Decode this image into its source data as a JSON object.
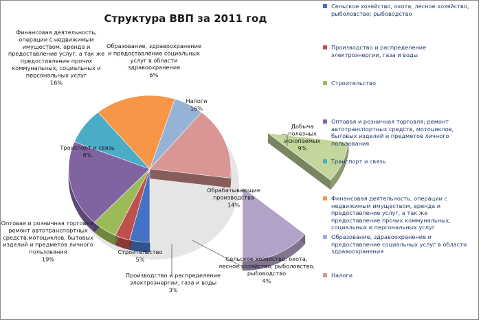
{
  "chart_data": {
    "type": "pie",
    "title": "Структура ВВП за 2011 год",
    "slices": [
      {
        "name": "Сельское хозяйство, охота, лесное хозяйство, рыболовство; рыбоводство",
        "label": "Сельское хозяйство, охота,\nлесное хозяйство, рыболовство,\nрыбоводство",
        "percent_label": "4%",
        "value": 4,
        "color": "#4472c4"
      },
      {
        "name": "Производство и распределение электроэнергии, газа и воды",
        "label": "Производство и распределение\nэлектроэнергии, газа и воды",
        "percent_label": "3%",
        "value": 3,
        "color": "#c0504d"
      },
      {
        "name": "Строительство",
        "label": "Строительство",
        "percent_label": "5%",
        "value": 5,
        "color": "#9bbb59"
      },
      {
        "name": "Оптовая и розничная торговля; ремонт автотранспортных средств, мотоциклов, бытовых изделий и предметов личного пользования",
        "label": "Оптовая и розничная торговля;\nремонт автотранспортных\nсредств,мотоциклов, бытовых\nизделий и предметов личного\nпользования",
        "percent_label": "19%",
        "value": 19,
        "color": "#8064a2"
      },
      {
        "name": "Транспорт и связь",
        "label": "Транспорт и связь",
        "percent_label": "8%",
        "value": 8,
        "color": "#4bacc6"
      },
      {
        "name": "Финансовая деятельность, операции с недвижимым имуществом, аренда и предоставление услуг, а так же предоставление прочих коммунальных, социальных и персональных услуг",
        "label": "Финансовая деятельность,\nоперации с недвижимым\nимуществом, аренда и\nпредоставление услуг, а так же\nпредоставление прочих\nкоммунальных, социальных и\nперсональных услуг",
        "percent_label": "16%",
        "value": 16,
        "color": "#f79646"
      },
      {
        "name": "Образование, здравоохранение и предоставление социальных услуг в области здравоохранения",
        "label": "Образование, здравоохранение\nи предоставление социальных\nуслуг в области\nздравоохранения",
        "percent_label": "6%",
        "value": 6,
        "color": "#95b3d7"
      },
      {
        "name": "Налоги",
        "label": "Налоги",
        "percent_label": "16%",
        "value": 16,
        "color": "#d99694"
      },
      {
        "name": "Добыча полезных ископаемых",
        "label": "Добыча\nполезных\nископаемых",
        "percent_label": "9%",
        "value": 9,
        "color": "#c3d69b"
      },
      {
        "name": "Обрабатывающие производства",
        "label": "Обрабатывающие\nпроизводства",
        "percent_label": "14%",
        "value": 14,
        "color": "#b3a2c7"
      }
    ],
    "legend": {
      "placement": "right",
      "items": [
        {
          "text": "Сельское хозяйство, охота, лесное хозяйство, рыболовство; рыбоводство",
          "color": "#4472c4"
        },
        {
          "text": "Производство и распределение электроэнергии, газа и воды",
          "color": "#c0504d"
        },
        {
          "text": "Строительство",
          "color": "#9bbb59"
        },
        {
          "text": "Оптовая и розничная торговля; ремонт автотранспортных средств, мотоциклов, бытовых изделий и предметов личного пользования",
          "color": "#8064a2"
        },
        {
          "text": "Транспорт и связь",
          "color": "#4bacc6"
        },
        {
          "text": "Финансовая деятельность, операции с недвижимым имуществом, аренда и предоставление услуг, а так же предоставление прочих коммунальных, социальных и персональных услуг",
          "color": "#f79646"
        },
        {
          "text": "Образование, здравоохранение и предоставление социальных услуг в области здравоохранения",
          "color": "#95b3d7"
        },
        {
          "text": "Налоги",
          "color": "#d99694"
        }
      ]
    }
  }
}
